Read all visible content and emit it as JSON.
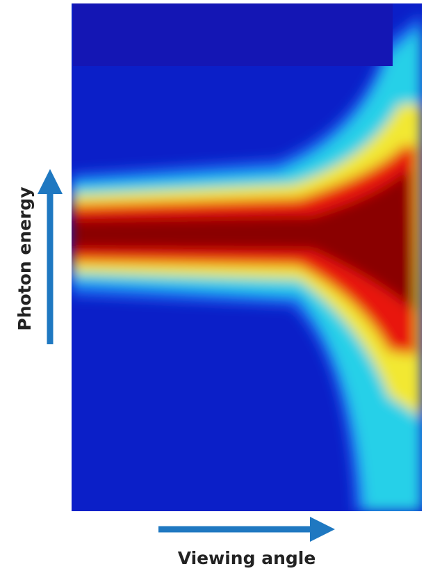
{
  "labels": {
    "y_axis": "Photon energy",
    "x_axis": "Viewing angle"
  }
}
